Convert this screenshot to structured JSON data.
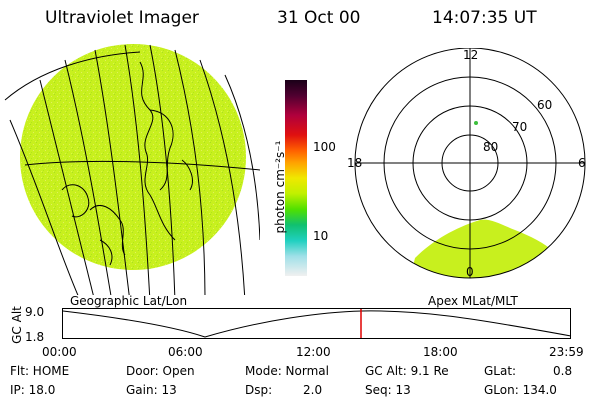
{
  "header": {
    "title": "Ultraviolet Imager",
    "date": "31 Oct 00",
    "time": "14:07:35 UT"
  },
  "panels": {
    "geo_label": "Geographic Lat/Lon",
    "apex_label": "Apex MLat/MLT"
  },
  "colorbar": {
    "unit_label": "photon cm⁻²s⁻¹",
    "ticks": [
      "100",
      "10"
    ]
  },
  "polar": {
    "mlt_labels": {
      "top": "12",
      "left": "18",
      "right": "6",
      "bottom": "0"
    },
    "lat_labels": [
      "60",
      "70",
      "80"
    ]
  },
  "altitude_plot": {
    "ylabel": "GC Alt",
    "y_ticks": [
      "9.0",
      "1.8"
    ],
    "x_ticks": [
      "00:00",
      "06:00",
      "12:00",
      "18:00",
      "23:59"
    ]
  },
  "info_rows": [
    [
      "Flt: HOME",
      "Door: Open",
      "Mode: Normal",
      "GC Alt: 9.1 Re",
      "GLat:",
      "0.8"
    ],
    [
      "IP: 18.0",
      "Gain: 13",
      "Dsp:",
      "2.0",
      "Seq: 13",
      "GLon: 134.0"
    ]
  ],
  "colors": {
    "aurora_fill": "#c8f01e",
    "marker_line": "#e00000"
  }
}
